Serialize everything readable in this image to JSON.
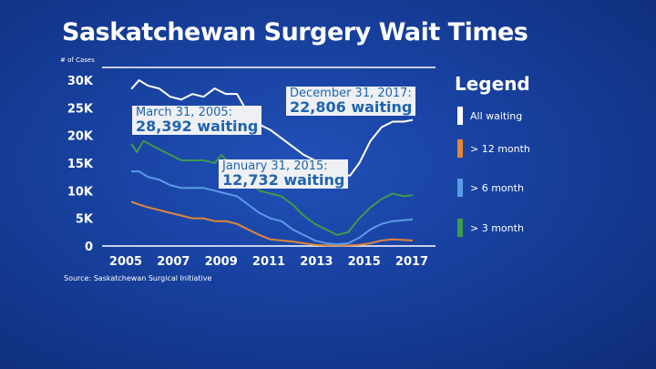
{
  "title": "Saskatchewan Surgery Wait Times",
  "source": "Source: Saskatchewan Surgical Initiative",
  "legend": {
    "title": "Legend",
    "items": [
      {
        "label": "All waiting",
        "color": "#ffffff"
      },
      {
        "label": "> 12 month",
        "color": "#e0873a"
      },
      {
        "label": "> 6 month",
        "color": "#5b9be6"
      },
      {
        "label": "> 3 month",
        "color": "#3f9a4e"
      }
    ]
  },
  "callouts": [
    {
      "date": "March 31, 2005:",
      "value": "28,392 waiting"
    },
    {
      "date": "December 31, 2017:",
      "value": "22,806 waiting"
    },
    {
      "date": "January 31, 2015:",
      "value": "12,732 waiting"
    }
  ],
  "chart_data": {
    "type": "line",
    "title": "Saskatchewan Surgery Wait Times",
    "ylabel": "# of Cases",
    "ylim": [
      0,
      30000
    ],
    "yticks": [
      "0",
      "5K",
      "10K",
      "15K",
      "20K",
      "25K",
      "30K"
    ],
    "ytick_values": [
      0,
      5000,
      10000,
      15000,
      20000,
      25000,
      30000
    ],
    "xticks": [
      "2005",
      "2007",
      "2009",
      "2011",
      "2013",
      "2015",
      "2017"
    ],
    "xtick_values": [
      2005,
      2007,
      2009,
      2011,
      2013,
      2015,
      2017
    ],
    "xlim": [
      2005,
      2017.9
    ],
    "grid": false,
    "legend_position": "right",
    "series": [
      {
        "name": "All waiting",
        "color": "#ffffff",
        "x": [
          2005.25,
          2005.6,
          2006,
          2006.5,
          2007,
          2007.5,
          2008,
          2008.5,
          2009,
          2009.5,
          2010,
          2010.5,
          2011,
          2011.5,
          2012,
          2012.5,
          2013,
          2013.5,
          2014,
          2014.5,
          2015.08,
          2015.5,
          2016,
          2016.5,
          2017,
          2017.5,
          2017.9
        ],
        "values": [
          28392,
          30000,
          29000,
          28500,
          27000,
          26500,
          27500,
          27000,
          28500,
          27500,
          27500,
          24000,
          22000,
          21000,
          19500,
          18000,
          16500,
          15500,
          14000,
          13000,
          12732,
          15000,
          19000,
          21500,
          22500,
          22500,
          22806
        ]
      },
      {
        "name": "> 12 month",
        "color": "#e0873a",
        "x": [
          2005.25,
          2005.6,
          2006,
          2006.5,
          2007,
          2007.5,
          2008,
          2008.5,
          2009,
          2009.5,
          2010,
          2010.5,
          2011,
          2011.5,
          2012,
          2012.5,
          2013,
          2013.5,
          2014,
          2015,
          2015.5,
          2016,
          2016.5,
          2017,
          2017.9
        ],
        "values": [
          8000,
          7500,
          7000,
          6500,
          6000,
          5500,
          5000,
          5000,
          4500,
          4500,
          4000,
          3000,
          2000,
          1200,
          1000,
          800,
          500,
          200,
          100,
          100,
          200,
          500,
          1000,
          1200,
          1000
        ]
      },
      {
        "name": "> 6 month",
        "color": "#5b9be6",
        "x": [
          2005.25,
          2005.6,
          2006,
          2006.5,
          2007,
          2007.5,
          2008,
          2008.5,
          2009,
          2009.5,
          2010,
          2010.5,
          2011,
          2011.5,
          2012,
          2012.5,
          2013,
          2013.5,
          2014,
          2014.5,
          2015,
          2015.5,
          2016,
          2016.5,
          2017,
          2017.9
        ],
        "values": [
          13500,
          13500,
          12500,
          12000,
          11000,
          10500,
          10500,
          10500,
          10000,
          9500,
          9000,
          7500,
          6000,
          5000,
          4500,
          3000,
          2000,
          1000,
          500,
          300,
          500,
          1500,
          3000,
          4000,
          4500,
          4800
        ]
      },
      {
        "name": "> 3 month",
        "color": "#3f9a4e",
        "x": [
          2005.25,
          2005.5,
          2005.8,
          2006.5,
          2007,
          2007.5,
          2008,
          2008.5,
          2009,
          2009.3,
          2010,
          2010.5,
          2011,
          2011.5,
          2012,
          2012.5,
          2013,
          2013.5,
          2014,
          2014.5,
          2015,
          2015.5,
          2016,
          2016.5,
          2017,
          2017.5,
          2017.9
        ],
        "values": [
          18500,
          17000,
          19000,
          17500,
          16500,
          15500,
          15500,
          15500,
          15000,
          16500,
          13500,
          12000,
          10000,
          9500,
          9000,
          7500,
          5500,
          4000,
          3000,
          2000,
          2500,
          5000,
          7000,
          8500,
          9500,
          9000,
          9200
        ]
      }
    ]
  }
}
